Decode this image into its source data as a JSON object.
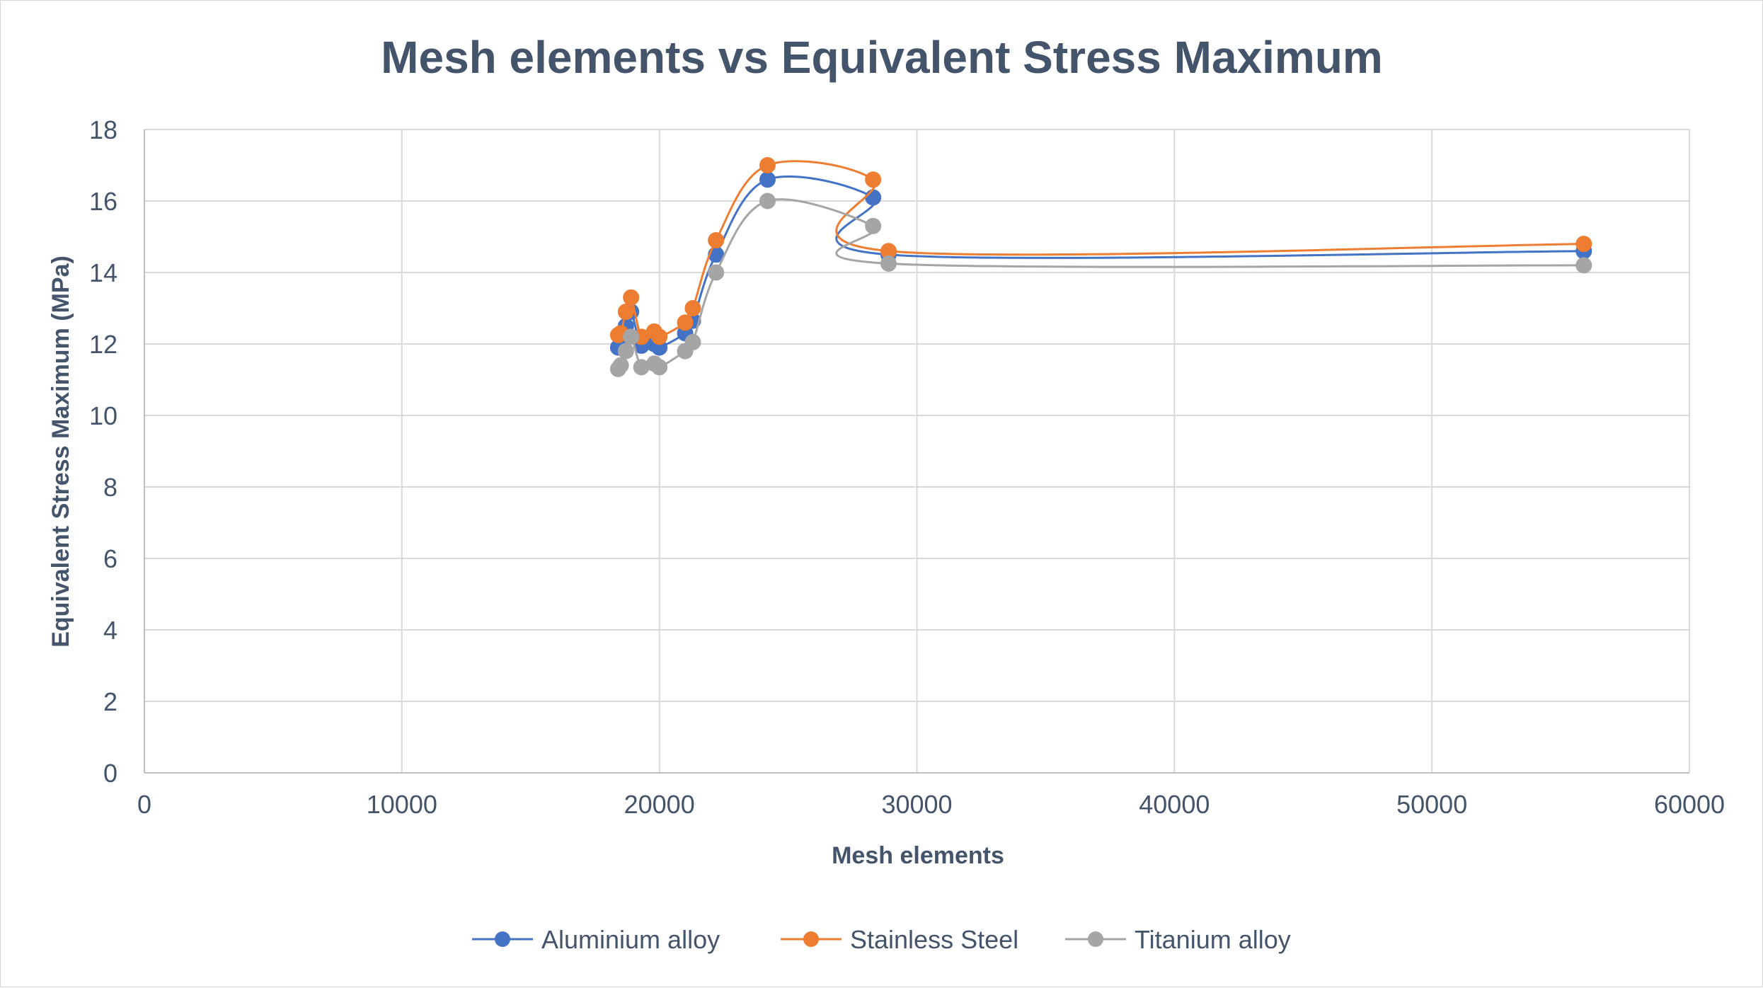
{
  "chart_data": {
    "type": "scatter",
    "title": "Mesh elements vs Equivalent Stress Maximum",
    "xlabel": "Mesh elements",
    "ylabel": "Equivalent Stress Maximum (MPa)",
    "xlim": [
      0,
      60000
    ],
    "ylim": [
      0,
      18
    ],
    "xticks": [
      "0",
      "10000",
      "20000",
      "30000",
      "40000",
      "50000",
      "60000"
    ],
    "yticks": [
      "0",
      "2",
      "4",
      "6",
      "8",
      "10",
      "12",
      "14",
      "16",
      "18"
    ],
    "grid": true,
    "legend_position": "bottom",
    "line_style": "smooth",
    "series": [
      {
        "name": "Aluminium alloy",
        "color": "#4472c4",
        "points": [
          [
            18400,
            11.9
          ],
          [
            18500,
            12.2
          ],
          [
            18700,
            12.5
          ],
          [
            18900,
            12.9
          ],
          [
            19300,
            11.95
          ],
          [
            19800,
            12.0
          ],
          [
            20000,
            11.9
          ],
          [
            21000,
            12.3
          ],
          [
            21300,
            12.65
          ],
          [
            22200,
            14.5
          ],
          [
            24200,
            16.6
          ],
          [
            28300,
            16.1
          ],
          [
            28900,
            14.5
          ],
          [
            55900,
            14.6
          ]
        ]
      },
      {
        "name": "Stainless Steel",
        "color": "#ed7d31",
        "points": [
          [
            18400,
            12.25
          ],
          [
            18500,
            12.3
          ],
          [
            18700,
            12.9
          ],
          [
            18900,
            13.3
          ],
          [
            19300,
            12.2
          ],
          [
            19800,
            12.35
          ],
          [
            20000,
            12.2
          ],
          [
            21000,
            12.6
          ],
          [
            21300,
            13.0
          ],
          [
            22200,
            14.9
          ],
          [
            24200,
            17.0
          ],
          [
            28300,
            16.6
          ],
          [
            28900,
            14.6
          ],
          [
            55900,
            14.8
          ]
        ]
      },
      {
        "name": "Titanium alloy",
        "color": "#a5a5a5",
        "points": [
          [
            18400,
            11.3
          ],
          [
            18500,
            11.4
          ],
          [
            18700,
            11.8
          ],
          [
            18900,
            12.2
          ],
          [
            19300,
            11.35
          ],
          [
            19800,
            11.45
          ],
          [
            20000,
            11.35
          ],
          [
            21000,
            11.8
          ],
          [
            21300,
            12.05
          ],
          [
            22200,
            14.0
          ],
          [
            24200,
            16.0
          ],
          [
            28300,
            15.3
          ],
          [
            28900,
            14.25
          ],
          [
            55900,
            14.2
          ]
        ]
      }
    ]
  },
  "colors": {
    "text": "#44546a",
    "grid": "#d9d9d9",
    "axis": "#bfbfbf"
  }
}
